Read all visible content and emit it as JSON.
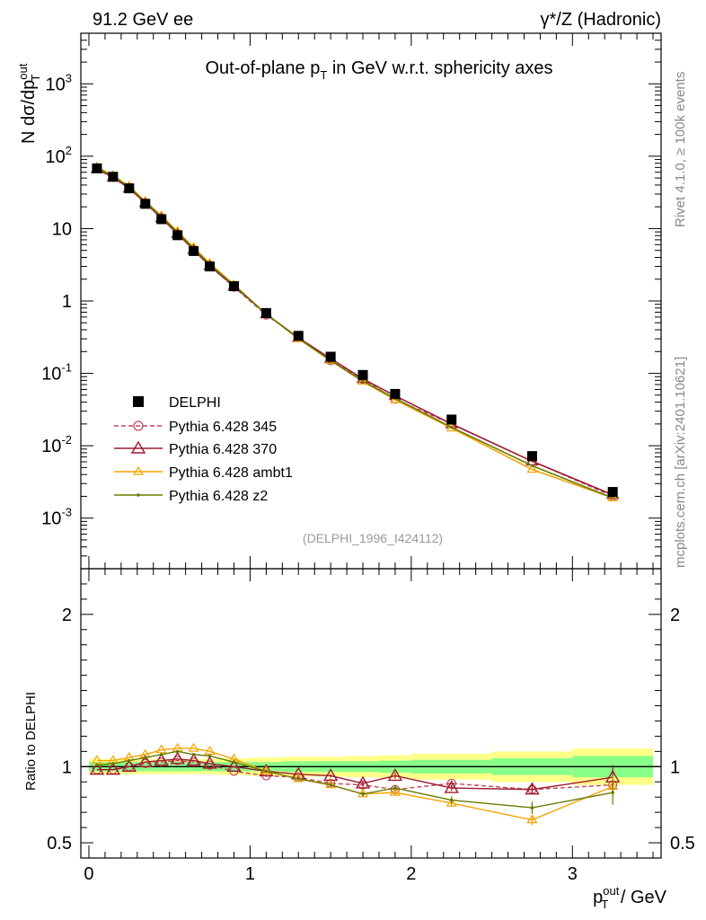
{
  "header": {
    "left_label": "91.2 GeV ee",
    "right_label": "γ*/Z (Hadronic)"
  },
  "side_labels": {
    "rivet": "Rivet 4.1.0, ≥ 100k events",
    "mcplots": "mcplots.cern.ch [arXiv:2401.10621]"
  },
  "colors": {
    "data": "#000000",
    "p345": "#c2465a",
    "p370": "#9b1b30",
    "ambt1": "#f5a300",
    "z2": "#6b7a00",
    "band_outer": "#ffff88",
    "band_inner": "#88ff88"
  },
  "chart_data": [
    {
      "type": "line",
      "title": "Out-of-plane p_T in GeV w.r.t. sphericity axes",
      "ylabel": "N dσ/dp_T^out",
      "yscale": "log",
      "ylim": [
        0.0002,
        5000
      ],
      "xlim": [
        -0.05,
        3.55
      ],
      "yticks": [
        {
          "value": 0.001,
          "label": "10^-3"
        },
        {
          "value": 0.01,
          "label": "10^-2"
        },
        {
          "value": 0.1,
          "label": "10^-1"
        },
        {
          "value": 1,
          "label": "1"
        },
        {
          "value": 10,
          "label": "10"
        },
        {
          "value": 100,
          "label": "10^2"
        },
        {
          "value": 1000,
          "label": "10^3"
        }
      ],
      "analysis_tag": "(DELPHI_1996_I424112)",
      "x": [
        0.05,
        0.15,
        0.25,
        0.35,
        0.45,
        0.55,
        0.65,
        0.75,
        0.9,
        1.1,
        1.3,
        1.5,
        1.7,
        1.9,
        2.25,
        2.75,
        3.25
      ],
      "series": [
        {
          "name": "DELPHI",
          "key": "data",
          "values": [
            68,
            52,
            36,
            22,
            13.5,
            8.1,
            4.9,
            3.0,
            1.6,
            0.68,
            0.33,
            0.17,
            0.095,
            0.052,
            0.023,
            0.0072,
            0.0023
          ]
        },
        {
          "name": "Pythia 6.428 345",
          "key": "p345",
          "values": [
            67,
            51,
            36,
            22.5,
            13.8,
            8.4,
            5.05,
            3.05,
            1.55,
            0.64,
            0.31,
            0.15,
            0.083,
            0.044,
            0.02,
            0.0061,
            0.002
          ]
        },
        {
          "name": "Pythia 6.428 370",
          "key": "p370",
          "values": [
            66.5,
            51,
            36,
            22.6,
            14,
            8.5,
            5.1,
            3.05,
            1.6,
            0.66,
            0.31,
            0.16,
            0.084,
            0.049,
            0.02,
            0.0061,
            0.0021
          ]
        },
        {
          "name": "Pythia 6.428 ambt1",
          "key": "ambt1",
          "values": [
            71,
            54,
            38.5,
            23.8,
            15,
            9.1,
            5.5,
            3.3,
            1.68,
            0.66,
            0.3,
            0.15,
            0.077,
            0.043,
            0.0175,
            0.0047,
            0.0019
          ]
        },
        {
          "name": "Pythia 6.428 z2",
          "key": "z2",
          "values": [
            69,
            53,
            37.5,
            23.3,
            14.6,
            8.9,
            5.3,
            3.2,
            1.65,
            0.66,
            0.305,
            0.15,
            0.078,
            0.045,
            0.018,
            0.0053,
            0.0019
          ]
        }
      ]
    },
    {
      "type": "line",
      "ylabel": "Ratio to DELPHI",
      "ylim": [
        0.4,
        2.3
      ],
      "xlim": [
        -0.05,
        3.55
      ],
      "xlabel": "p_T^out / GeV",
      "yticks": [
        0.5,
        1,
        2
      ],
      "xticks": [
        0,
        1,
        2,
        3
      ],
      "bins": [
        {
          "lo": 0.0,
          "hi": 0.1,
          "err_inner": 0.03,
          "err_outer": 0.05
        },
        {
          "lo": 0.1,
          "hi": 0.2,
          "err_inner": 0.03,
          "err_outer": 0.05
        },
        {
          "lo": 0.2,
          "hi": 0.3,
          "err_inner": 0.03,
          "err_outer": 0.05
        },
        {
          "lo": 0.3,
          "hi": 0.4,
          "err_inner": 0.03,
          "err_outer": 0.05
        },
        {
          "lo": 0.4,
          "hi": 0.5,
          "err_inner": 0.03,
          "err_outer": 0.05
        },
        {
          "lo": 0.5,
          "hi": 0.6,
          "err_inner": 0.03,
          "err_outer": 0.05
        },
        {
          "lo": 0.6,
          "hi": 0.7,
          "err_inner": 0.03,
          "err_outer": 0.05
        },
        {
          "lo": 0.7,
          "hi": 0.8,
          "err_inner": 0.03,
          "err_outer": 0.05
        },
        {
          "lo": 0.8,
          "hi": 1.0,
          "err_inner": 0.03,
          "err_outer": 0.055
        },
        {
          "lo": 1.0,
          "hi": 1.2,
          "err_inner": 0.03,
          "err_outer": 0.06
        },
        {
          "lo": 1.2,
          "hi": 1.4,
          "err_inner": 0.035,
          "err_outer": 0.065
        },
        {
          "lo": 1.4,
          "hi": 1.6,
          "err_inner": 0.035,
          "err_outer": 0.065
        },
        {
          "lo": 1.6,
          "hi": 1.8,
          "err_inner": 0.035,
          "err_outer": 0.07
        },
        {
          "lo": 1.8,
          "hi": 2.0,
          "err_inner": 0.04,
          "err_outer": 0.075
        },
        {
          "lo": 2.0,
          "hi": 2.5,
          "err_inner": 0.045,
          "err_outer": 0.085
        },
        {
          "lo": 2.5,
          "hi": 3.0,
          "err_inner": 0.055,
          "err_outer": 0.1
        },
        {
          "lo": 3.0,
          "hi": 3.5,
          "err_inner": 0.07,
          "err_outer": 0.12
        }
      ],
      "x": [
        0.05,
        0.15,
        0.25,
        0.35,
        0.45,
        0.55,
        0.65,
        0.75,
        0.9,
        1.1,
        1.3,
        1.5,
        1.7,
        1.9,
        2.25,
        2.75,
        3.25
      ],
      "series": [
        {
          "name": "Pythia 6.428 345",
          "key": "p345",
          "marker": "circle",
          "dashed": true,
          "values": [
            0.98,
            0.98,
            1.0,
            1.02,
            1.03,
            1.04,
            1.03,
            1.01,
            0.97,
            0.94,
            0.93,
            0.89,
            0.88,
            0.85,
            0.89,
            0.85,
            0.88
          ],
          "errors": [
            0.005,
            0.005,
            0.005,
            0.005,
            0.005,
            0.005,
            0.005,
            0.005,
            0.005,
            0.008,
            0.01,
            0.012,
            0.015,
            0.02,
            0.02,
            0.03,
            0.05
          ]
        },
        {
          "name": "Pythia 6.428 370",
          "key": "p370",
          "marker": "triangle",
          "values": [
            0.98,
            0.98,
            1.0,
            1.03,
            1.04,
            1.05,
            1.04,
            1.02,
            1.0,
            0.97,
            0.95,
            0.94,
            0.89,
            0.94,
            0.86,
            0.85,
            0.93
          ],
          "errors": [
            0.005,
            0.005,
            0.005,
            0.005,
            0.005,
            0.005,
            0.005,
            0.005,
            0.005,
            0.008,
            0.01,
            0.012,
            0.015,
            0.02,
            0.02,
            0.03,
            0.08
          ]
        },
        {
          "name": "Pythia 6.428 ambt1",
          "key": "ambt1",
          "marker": "triangle-small",
          "values": [
            1.04,
            1.04,
            1.06,
            1.08,
            1.11,
            1.12,
            1.12,
            1.1,
            1.05,
            0.97,
            0.92,
            0.88,
            0.82,
            0.83,
            0.76,
            0.65,
            0.87
          ],
          "errors": [
            0.005,
            0.005,
            0.005,
            0.005,
            0.005,
            0.005,
            0.005,
            0.005,
            0.005,
            0.008,
            0.01,
            0.012,
            0.015,
            0.02,
            0.025,
            0.035,
            0.07
          ]
        },
        {
          "name": "Pythia 6.428 z2",
          "key": "z2",
          "marker": "dot",
          "values": [
            1.01,
            1.02,
            1.04,
            1.06,
            1.08,
            1.1,
            1.08,
            1.07,
            1.03,
            0.97,
            0.92,
            0.88,
            0.82,
            0.86,
            0.78,
            0.73,
            0.83
          ],
          "errors": [
            0.005,
            0.005,
            0.005,
            0.005,
            0.005,
            0.005,
            0.005,
            0.005,
            0.005,
            0.008,
            0.01,
            0.012,
            0.015,
            0.02,
            0.025,
            0.04,
            0.08
          ]
        }
      ]
    }
  ]
}
